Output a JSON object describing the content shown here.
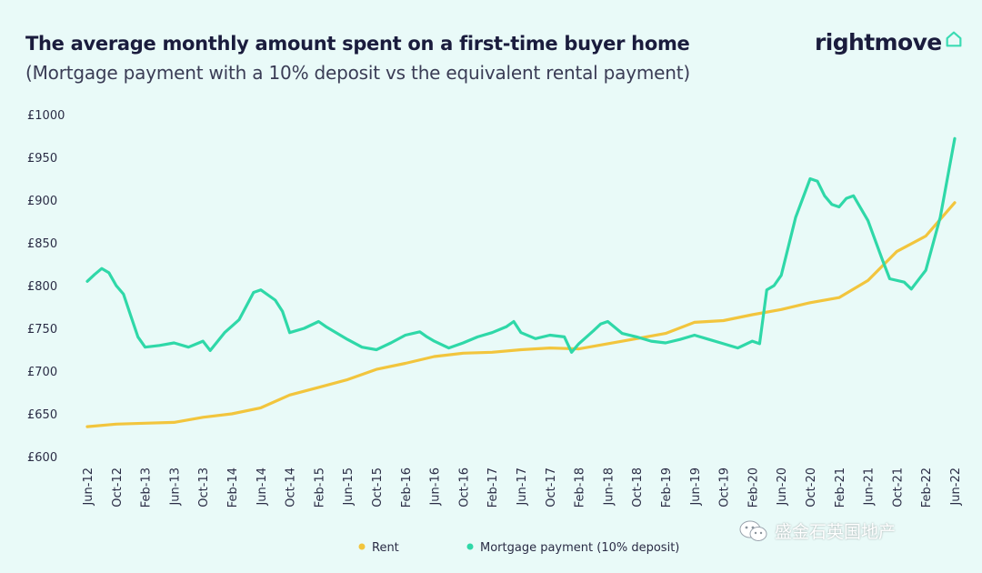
{
  "header": {
    "title": "The average monthly amount spent on a first-time buyer home",
    "subtitle": "(Mortgage payment with a 10% deposit vs the equivalent rental payment)"
  },
  "brand": {
    "name": "rightmove",
    "icon": "house-outline-icon",
    "color": "#3bdbb3"
  },
  "watermark": {
    "text": "盛金石英国地产",
    "icon": "wechat-icon"
  },
  "colors": {
    "rent": "#f2c53d",
    "mortgage": "#2fd8a8",
    "axis_text": "#2a2c45",
    "background": "#e9faf8"
  },
  "chart_data": {
    "type": "line",
    "title": "The average monthly amount spent on a first-time buyer home",
    "subtitle": "(Mortgage payment with a 10% deposit vs the equivalent rental payment)",
    "xlabel": "",
    "ylabel": "",
    "ylim": [
      600,
      1000
    ],
    "y_ticks": [
      "£600",
      "£650",
      "£700",
      "£750",
      "£800",
      "£850",
      "£900",
      "£950",
      "£1000"
    ],
    "x_ticks": [
      "Jun-12",
      "Oct-12",
      "Feb-13",
      "Jun-13",
      "Oct-13",
      "Feb-14",
      "Jun-14",
      "Oct-14",
      "Feb-15",
      "Jun-15",
      "Oct-15",
      "Feb-16",
      "Jun-16",
      "Oct-16",
      "Feb-17",
      "Jun-17",
      "Oct-17",
      "Feb-18",
      "Jun-18",
      "Oct-18",
      "Feb-19",
      "Jun-19",
      "Oct-19",
      "Feb-20",
      "Jun-20",
      "Oct-20",
      "Feb-21",
      "Jun-21",
      "Oct-21",
      "Feb-22",
      "Jun-22"
    ],
    "x_start": "Jun-12",
    "x_end": "Jun-22",
    "grid": false,
    "legend_position": "bottom",
    "series": [
      {
        "name": "Rent",
        "points": [
          [
            "Jun-12",
            635
          ],
          [
            "Oct-12",
            638
          ],
          [
            "Feb-13",
            639
          ],
          [
            "Jun-13",
            640
          ],
          [
            "Oct-13",
            646
          ],
          [
            "Feb-14",
            650
          ],
          [
            "Jun-14",
            657
          ],
          [
            "Oct-14",
            672
          ],
          [
            "Feb-15",
            681
          ],
          [
            "Jun-15",
            690
          ],
          [
            "Oct-15",
            702
          ],
          [
            "Feb-16",
            709
          ],
          [
            "Jun-16",
            717
          ],
          [
            "Oct-16",
            721
          ],
          [
            "Feb-17",
            722
          ],
          [
            "Jun-17",
            725
          ],
          [
            "Oct-17",
            727
          ],
          [
            "Feb-18",
            726
          ],
          [
            "Jun-18",
            732
          ],
          [
            "Oct-18",
            738
          ],
          [
            "Feb-19",
            744
          ],
          [
            "Jun-19",
            757
          ],
          [
            "Oct-19",
            759
          ],
          [
            "Feb-20",
            766
          ],
          [
            "Jun-20",
            772
          ],
          [
            "Oct-20",
            780
          ],
          [
            "Feb-21",
            786
          ],
          [
            "Jun-21",
            806
          ],
          [
            "Oct-21",
            840
          ],
          [
            "Feb-22",
            858
          ],
          [
            "Jun-22",
            897
          ]
        ]
      },
      {
        "name": "Mortgage payment (10% deposit)",
        "points": [
          [
            "Jun-12",
            805
          ],
          [
            "Jul-12",
            813
          ],
          [
            "Aug-12",
            820
          ],
          [
            "Sep-12",
            815
          ],
          [
            "Oct-12",
            800
          ],
          [
            "Nov-12",
            790
          ],
          [
            "Dec-12",
            765
          ],
          [
            "Jan-13",
            740
          ],
          [
            "Feb-13",
            728
          ],
          [
            "Apr-13",
            730
          ],
          [
            "Jun-13",
            733
          ],
          [
            "Aug-13",
            728
          ],
          [
            "Oct-13",
            735
          ],
          [
            "Nov-13",
            724
          ],
          [
            "Jan-14",
            745
          ],
          [
            "Mar-14",
            760
          ],
          [
            "May-14",
            792
          ],
          [
            "Jun-14",
            795
          ],
          [
            "Aug-14",
            783
          ],
          [
            "Sep-14",
            770
          ],
          [
            "Oct-14",
            745
          ],
          [
            "Dec-14",
            750
          ],
          [
            "Feb-15",
            758
          ],
          [
            "Mar-15",
            752
          ],
          [
            "Jun-15",
            737
          ],
          [
            "Aug-15",
            728
          ],
          [
            "Oct-15",
            725
          ],
          [
            "Dec-15",
            733
          ],
          [
            "Feb-16",
            742
          ],
          [
            "Apr-16",
            746
          ],
          [
            "May-16",
            740
          ],
          [
            "Jun-16",
            735
          ],
          [
            "Aug-16",
            727
          ],
          [
            "Oct-16",
            733
          ],
          [
            "Dec-16",
            740
          ],
          [
            "Feb-17",
            745
          ],
          [
            "Apr-17",
            752
          ],
          [
            "May-17",
            758
          ],
          [
            "Jun-17",
            745
          ],
          [
            "Aug-17",
            738
          ],
          [
            "Oct-17",
            742
          ],
          [
            "Dec-17",
            740
          ],
          [
            "Jan-18",
            722
          ],
          [
            "Feb-18",
            732
          ],
          [
            "Apr-18",
            747
          ],
          [
            "May-18",
            755
          ],
          [
            "Jun-18",
            758
          ],
          [
            "Aug-18",
            744
          ],
          [
            "Oct-18",
            740
          ],
          [
            "Dec-18",
            735
          ],
          [
            "Feb-19",
            733
          ],
          [
            "Apr-19",
            737
          ],
          [
            "Jun-19",
            742
          ],
          [
            "Aug-19",
            737
          ],
          [
            "Oct-19",
            732
          ],
          [
            "Dec-19",
            727
          ],
          [
            "Feb-20",
            735
          ],
          [
            "Mar-20",
            732
          ],
          [
            "Apr-20",
            795
          ],
          [
            "May-20",
            800
          ],
          [
            "Jun-20",
            812
          ],
          [
            "Aug-20",
            880
          ],
          [
            "Oct-20",
            925
          ],
          [
            "Nov-20",
            922
          ],
          [
            "Dec-20",
            905
          ],
          [
            "Jan-21",
            895
          ],
          [
            "Feb-21",
            892
          ],
          [
            "Mar-21",
            902
          ],
          [
            "Apr-21",
            905
          ],
          [
            "Jun-21",
            876
          ],
          [
            "Aug-21",
            830
          ],
          [
            "Sep-21",
            808
          ],
          [
            "Nov-21",
            804
          ],
          [
            "Dec-21",
            796
          ],
          [
            "Feb-22",
            818
          ],
          [
            "Apr-22",
            880
          ],
          [
            "Jun-22",
            972
          ]
        ]
      }
    ]
  }
}
